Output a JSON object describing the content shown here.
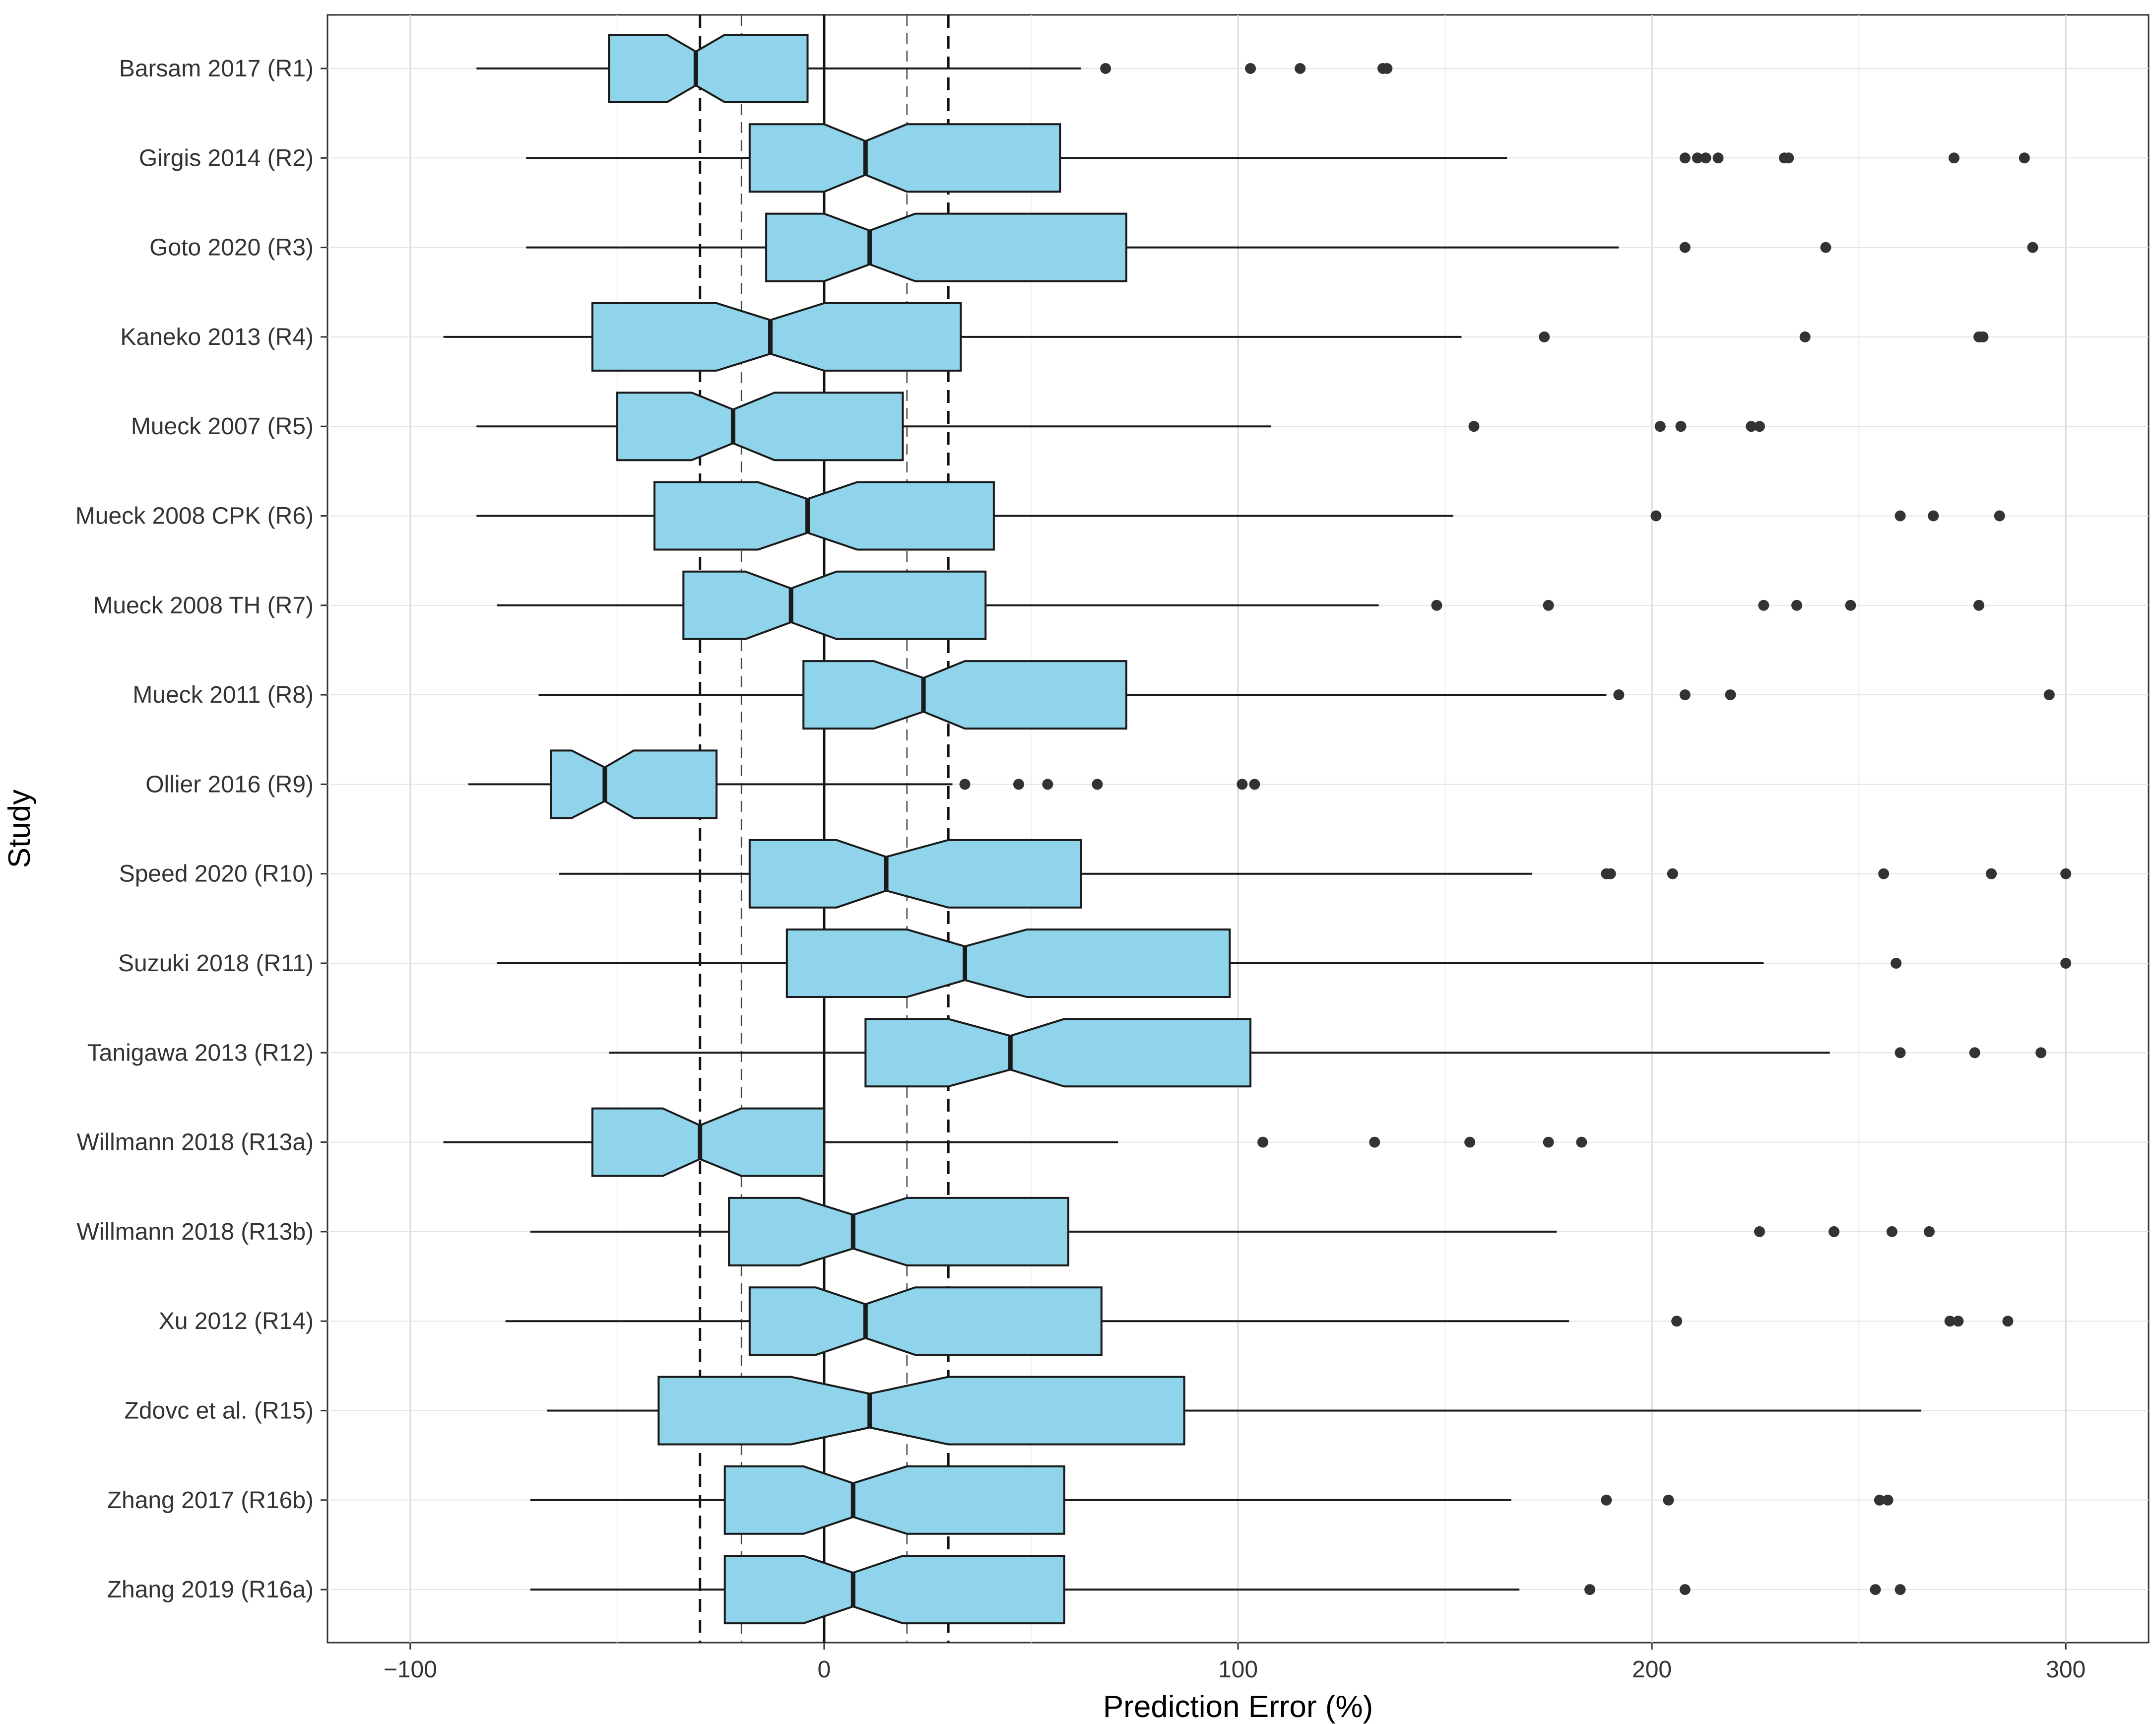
{
  "chart_data": {
    "type": "boxplot",
    "orientation": "horizontal",
    "notched": true,
    "xlabel": "Prediction Error (%)",
    "ylabel": "Study",
    "xlim": [
      -120,
      320
    ],
    "xticks": [
      -100,
      0,
      100,
      200,
      300
    ],
    "xtick_labels": [
      "−100",
      "0",
      "100",
      "200",
      "300"
    ],
    "grid": true,
    "box_fill": "#8fd4ea",
    "box_stroke": "#1a1a1a",
    "point_color": "#333333",
    "reference_lines": [
      {
        "x": 0,
        "style": "solid"
      },
      {
        "x": -30,
        "style": "dashed"
      },
      {
        "x": 30,
        "style": "dashed"
      },
      {
        "x": -20,
        "style": "dashed-thin"
      },
      {
        "x": 20,
        "style": "dashed-thin"
      }
    ],
    "studies": [
      {
        "label": "Barsam 2017 (R1)",
        "whisker_low": -84,
        "q1": -52,
        "median": -31,
        "q3": -4,
        "whisker_high": 62,
        "notch": [
          -38,
          -24
        ],
        "outliers": [
          68,
          103,
          115,
          135,
          136
        ]
      },
      {
        "label": "Girgis 2014 (R2)",
        "whisker_low": -72,
        "q1": -18,
        "median": 10,
        "q3": 57,
        "whisker_high": 165,
        "notch": [
          0,
          20
        ],
        "outliers": [
          208,
          211,
          213,
          216,
          232,
          233,
          273,
          290
        ]
      },
      {
        "label": "Goto 2020 (R3)",
        "whisker_low": -72,
        "q1": -14,
        "median": 11,
        "q3": 73,
        "whisker_high": 192,
        "notch": [
          0,
          22
        ],
        "outliers": [
          208,
          242,
          292
        ]
      },
      {
        "label": "Kaneko 2013 (R4)",
        "whisker_low": -92,
        "q1": -56,
        "median": -13,
        "q3": 33,
        "whisker_high": 154,
        "notch": [
          -26,
          0
        ],
        "outliers": [
          174,
          237,
          279,
          280
        ]
      },
      {
        "label": "Mueck 2007 (R5)",
        "whisker_low": -84,
        "q1": -50,
        "median": -22,
        "q3": 19,
        "whisker_high": 108,
        "notch": [
          -32,
          -12
        ],
        "outliers": [
          157,
          202,
          207,
          224,
          226
        ]
      },
      {
        "label": "Mueck 2008 CPK (R6)",
        "whisker_low": -84,
        "q1": -41,
        "median": -4,
        "q3": 41,
        "whisker_high": 152,
        "notch": [
          -16,
          8
        ],
        "outliers": [
          201,
          260,
          268,
          284
        ]
      },
      {
        "label": "Mueck 2008 TH (R7)",
        "whisker_low": -79,
        "q1": -34,
        "median": -8,
        "q3": 39,
        "whisker_high": 134,
        "notch": [
          -19,
          3
        ],
        "outliers": [
          148,
          175,
          227,
          235,
          248,
          279
        ]
      },
      {
        "label": "Mueck 2011 (R8)",
        "whisker_low": -69,
        "q1": -5,
        "median": 24,
        "q3": 73,
        "whisker_high": 189,
        "notch": [
          12,
          34
        ],
        "outliers": [
          192,
          208,
          219,
          296
        ]
      },
      {
        "label": "Ollier 2016 (R9)",
        "whisker_low": -86,
        "q1": -66,
        "median": -53,
        "q3": -26,
        "whisker_high": 31,
        "notch": [
          -61,
          -46
        ],
        "outliers": [
          34,
          47,
          54,
          66,
          101,
          104
        ]
      },
      {
        "label": "Speed 2020 (R10)",
        "whisker_low": -64,
        "q1": -18,
        "median": 15,
        "q3": 62,
        "whisker_high": 171,
        "notch": [
          3,
          30
        ],
        "outliers": [
          189,
          190,
          205,
          256,
          282,
          300
        ]
      },
      {
        "label": "Suzuki 2018 (R11)",
        "whisker_low": -79,
        "q1": -9,
        "median": 34,
        "q3": 98,
        "whisker_high": 227,
        "notch": [
          20,
          49
        ],
        "outliers": [
          259,
          300
        ]
      },
      {
        "label": "Tanigawa 2013 (R12)",
        "whisker_low": -52,
        "q1": 10,
        "median": 45,
        "q3": 103,
        "whisker_high": 243,
        "notch": [
          30,
          58
        ],
        "outliers": [
          260,
          278,
          294
        ]
      },
      {
        "label": "Willmann 2018 (R13a)",
        "whisker_low": -92,
        "q1": -56,
        "median": -30,
        "q3": 0,
        "whisker_high": 71,
        "notch": [
          -39,
          -20
        ],
        "outliers": [
          106,
          133,
          156,
          175,
          183
        ]
      },
      {
        "label": "Willmann 2018 (R13b)",
        "whisker_low": -71,
        "q1": -23,
        "median": 7,
        "q3": 59,
        "whisker_high": 177,
        "notch": [
          -6,
          20
        ],
        "outliers": [
          226,
          244,
          258,
          267
        ]
      },
      {
        "label": "Xu 2012 (R14)",
        "whisker_low": -77,
        "q1": -18,
        "median": 10,
        "q3": 67,
        "whisker_high": 180,
        "notch": [
          -2,
          22
        ],
        "outliers": [
          206,
          272,
          274,
          286
        ]
      },
      {
        "label": "Zdovc et al. (R15)",
        "whisker_low": -67,
        "q1": -40,
        "median": 11,
        "q3": 87,
        "whisker_high": 265,
        "notch": [
          -8,
          30
        ],
        "outliers": []
      },
      {
        "label": "Zhang 2017 (R16b)",
        "whisker_low": -71,
        "q1": -24,
        "median": 7,
        "q3": 58,
        "whisker_high": 166,
        "notch": [
          -5,
          20
        ],
        "outliers": [
          189,
          204,
          255,
          257
        ]
      },
      {
        "label": "Zhang 2019 (R16a)",
        "whisker_low": -71,
        "q1": -24,
        "median": 7,
        "q3": 58,
        "whisker_high": 168,
        "notch": [
          -5,
          19
        ],
        "outliers": [
          185,
          208,
          254,
          260
        ]
      }
    ]
  }
}
